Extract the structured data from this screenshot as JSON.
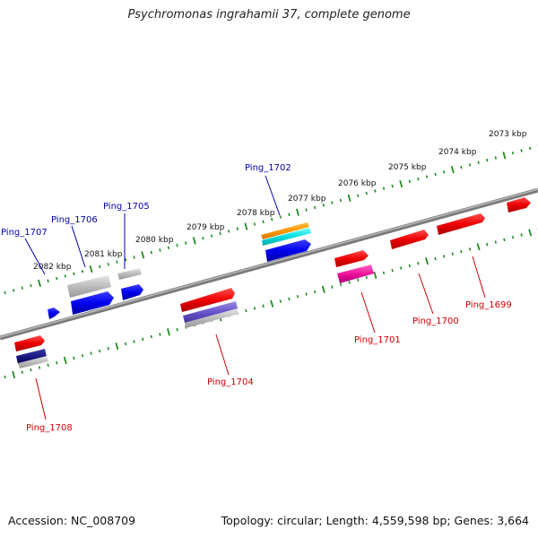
{
  "title": "Psychromonas ingrahamii 37, complete genome",
  "footer": {
    "accession": "Accession: NC_008709",
    "summary": "Topology: circular; Length: 4,559,598 bp; Genes: 3,664"
  },
  "colors": {
    "backbone": "#888888",
    "ticks": "#228b22",
    "top_label": "#0000aa",
    "bottom_label": "#cc0000"
  },
  "kbp_labels": [
    "2073 kbp",
    "2074 kbp",
    "2075 kbp",
    "2076 kbp",
    "2077 kbp",
    "2078 kbp",
    "2079 kbp",
    "2080 kbp",
    "2081 kbp",
    "2082 kbp"
  ],
  "gene_labels": {
    "top": [
      "Ping_1702",
      "Ping_1705",
      "Ping_1706",
      "Ping_1707"
    ],
    "bottom": [
      "Ping_1699",
      "Ping_1700",
      "Ping_1701",
      "Ping_1704",
      "Ping_1708"
    ]
  }
}
